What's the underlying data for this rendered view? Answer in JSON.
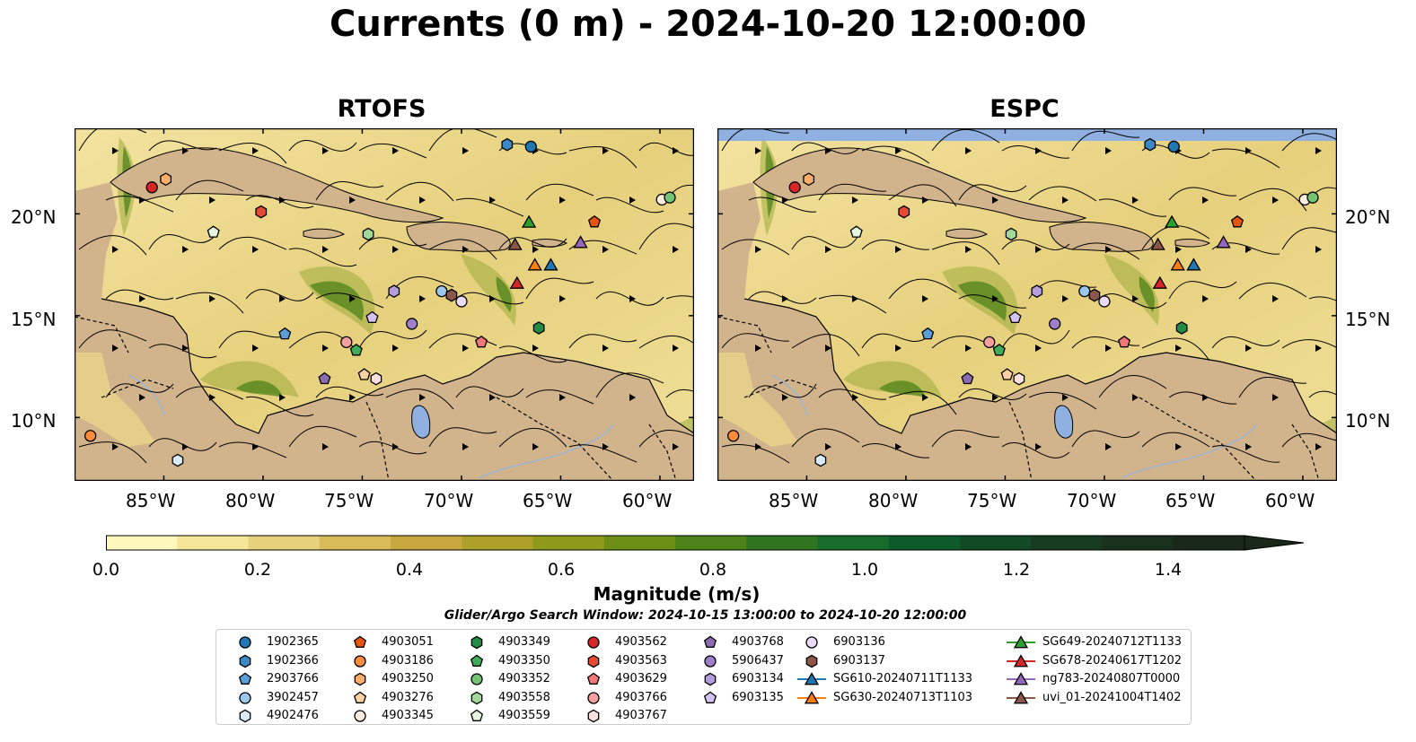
{
  "title": "Currents (0 m) - 2024-10-20 12:00:00",
  "panels": [
    {
      "title": "RTOFS"
    },
    {
      "title": "ESPC"
    }
  ],
  "lat_ticks": [
    "20°N",
    "15°N",
    "10°N"
  ],
  "lon_ticks": [
    "85°W",
    "80°W",
    "75°W",
    "70°W",
    "65°W",
    "60°W"
  ],
  "colors": {
    "land": "#d2b48c",
    "lake": "#8fb0e0",
    "missing_ocean": "#8fb0e0",
    "stream": "#000000"
  },
  "colorbar": {
    "label": "Magnitude (m/s)",
    "ticks": [
      "0.0",
      "0.2",
      "0.4",
      "0.6",
      "0.8",
      "1.0",
      "1.2",
      "1.4"
    ],
    "colors": [
      "#fff7bc",
      "#f5e699",
      "#e7d17a",
      "#d8bc5a",
      "#c8a83c",
      "#aea12a",
      "#8e9a1c",
      "#6e8f16",
      "#4d8219",
      "#2f7520",
      "#186b2a",
      "#0e5a2b",
      "#114a25",
      "#163b21",
      "#18301c",
      "#1a281a"
    ],
    "range": "0.0 – 1.6 m/s, extend max"
  },
  "search_window": "Glider/Argo Search Window: 2024-10-15 13:00:00 to 2024-10-20 12:00:00",
  "markers": [
    {
      "label": "1902365",
      "color": "#1f77b4",
      "shape": "circle",
      "lon": -66.5,
      "lat": 23.3
    },
    {
      "label": "1902366",
      "color": "#3a88c5",
      "shape": "hexagon",
      "lon": -67.7,
      "lat": 23.4
    },
    {
      "label": "2903766",
      "color": "#5a9fd9",
      "shape": "pentagon",
      "lon": -78.9,
      "lat": 14.1
    },
    {
      "label": "3902457",
      "color": "#9cc7ec",
      "shape": "circle",
      "lon": -71.0,
      "lat": 16.2
    },
    {
      "label": "4902476",
      "color": "#dbeaf7",
      "shape": "hexagon",
      "lon": -84.3,
      "lat": 7.9
    },
    {
      "label": "4903051",
      "color": "#e6550d",
      "shape": "pentagon",
      "lon": -63.3,
      "lat": 19.6
    },
    {
      "label": "4903186",
      "color": "#fd8d3c",
      "shape": "circle",
      "lon": -88.7,
      "lat": 9.1
    },
    {
      "label": "4903250",
      "color": "#fdae6b",
      "shape": "hexagon",
      "lon": -84.9,
      "lat": 21.7
    },
    {
      "label": "4903276",
      "color": "#fdd0a2",
      "shape": "pentagon",
      "lon": -74.9,
      "lat": 12.1
    },
    {
      "label": "4903345",
      "color": "#feedde",
      "shape": "circle",
      "lon": -59.9,
      "lat": 20.7
    },
    {
      "label": "4903349",
      "color": "#238b45",
      "shape": "hexagon",
      "lon": -66.1,
      "lat": 14.4
    },
    {
      "label": "4903350",
      "color": "#41ab5d",
      "shape": "pentagon",
      "lon": -75.3,
      "lat": 13.3
    },
    {
      "label": "4903352",
      "color": "#74c476",
      "shape": "circle",
      "lon": -59.5,
      "lat": 20.8
    },
    {
      "label": "4903558",
      "color": "#a1d99b",
      "shape": "hexagon",
      "lon": -74.7,
      "lat": 19.0
    },
    {
      "label": "4903559",
      "color": "#e5f5e0",
      "shape": "pentagon",
      "lon": -82.5,
      "lat": 19.1
    },
    {
      "label": "4903562",
      "color": "#d62728",
      "shape": "circle",
      "lon": -85.6,
      "lat": 21.3
    },
    {
      "label": "4903563",
      "color": "#e34a33",
      "shape": "hexagon",
      "lon": -80.1,
      "lat": 20.1
    },
    {
      "label": "4903629",
      "color": "#f07878",
      "shape": "pentagon",
      "lon": -69.0,
      "lat": 13.7
    },
    {
      "label": "4903766",
      "color": "#f5a0a0",
      "shape": "circle",
      "lon": -75.8,
      "lat": 13.7
    },
    {
      "label": "4903767",
      "color": "#fde0dd",
      "shape": "hexagon",
      "lon": -74.3,
      "lat": 11.9
    },
    {
      "label": "4903768",
      "color": "#8c6bb1",
      "shape": "pentagon",
      "lon": -76.9,
      "lat": 11.9
    },
    {
      "label": "5906437",
      "color": "#9e7fc8",
      "shape": "circle",
      "lon": -72.5,
      "lat": 14.6
    },
    {
      "label": "6903134",
      "color": "#b39ddb",
      "shape": "hexagon",
      "lon": -73.4,
      "lat": 16.2
    },
    {
      "label": "6903135",
      "color": "#d4c3f0",
      "shape": "pentagon",
      "lon": -74.5,
      "lat": 14.9
    },
    {
      "label": "6903136",
      "color": "#eadcf8",
      "shape": "circle",
      "lon": -70.0,
      "lat": 15.7
    },
    {
      "label": "6903137",
      "color": "#8c564b",
      "shape": "hexagon",
      "lon": -70.5,
      "lat": 16.0
    },
    {
      "label": "SG610-20240711T1133",
      "color": "#1f77b4",
      "shape": "triangle",
      "track": true,
      "lon": -65.5,
      "lat": 17.5
    },
    {
      "label": "SG630-20240713T1103",
      "color": "#ff7f0e",
      "shape": "triangle",
      "track": true,
      "lon": -66.3,
      "lat": 17.5
    },
    {
      "label": "SG649-20240712T1133",
      "color": "#2ca02c",
      "shape": "triangle",
      "track": true,
      "lon": -66.6,
      "lat": 19.6
    },
    {
      "label": "SG678-20240617T1202",
      "color": "#d62728",
      "shape": "triangle",
      "track": true,
      "lon": -67.2,
      "lat": 16.6
    },
    {
      "label": "ng783-20240807T0000",
      "color": "#9467bd",
      "shape": "triangle",
      "track": true,
      "lon": -64.0,
      "lat": 18.6
    },
    {
      "label": "uvi_01-20241004T1402",
      "color": "#8c564b",
      "shape": "triangle",
      "track": true,
      "lon": -67.3,
      "lat": 18.5
    }
  ]
}
